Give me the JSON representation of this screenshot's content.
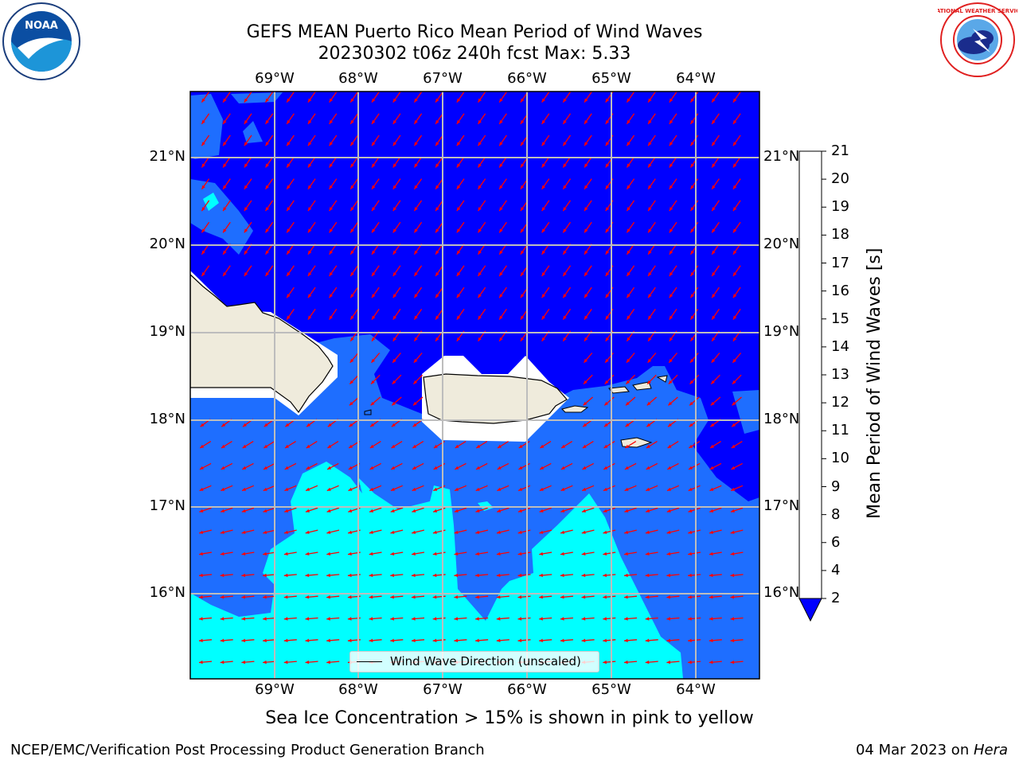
{
  "header": {
    "title_line1": "GEFS MEAN Puerto Rico Mean Period of Wind Waves",
    "title_line2": "20230302 t06z 240h fcst   Max: 5.33"
  },
  "logos": {
    "noaa": "NOAA",
    "nws": "NATIONAL WEATHER SERVICE"
  },
  "map": {
    "lon_labels": [
      "69°W",
      "68°W",
      "67°W",
      "66°W",
      "65°W",
      "64°W"
    ],
    "lat_labels": [
      "21°N",
      "20°N",
      "19°N",
      "18°N",
      "17°N",
      "16°N"
    ],
    "legend_label": "Wind Wave Direction (unscaled)",
    "colors": {
      "level_0_2": "#0000ff",
      "level_2_4": "#1e6eff",
      "level_4_6": "#00ffff",
      "land": "#efebdc",
      "arrow": "#ff0000",
      "grid": "#bdbdbd"
    }
  },
  "colorbar": {
    "label": "Mean Period of Wind Waves [s]",
    "ticks": [
      "2",
      "4",
      "6",
      "8",
      "9",
      "10",
      "11",
      "12",
      "13",
      "14",
      "15",
      "16",
      "17",
      "18",
      "19",
      "20",
      "21"
    ],
    "colors": [
      "#1e6eff",
      "#00ffff",
      "#44ffff",
      "#a0ffff",
      "#50f080",
      "#00e000",
      "#30d030",
      "#a0e000",
      "#d0ff00",
      "#e8f000",
      "#ffff00",
      "#ffd000",
      "#ffb000",
      "#ff8800",
      "#ff6000",
      "#ff3000",
      "#ff0000"
    ],
    "extend_color": "#0000ff"
  },
  "caption": "Sea Ice Concentration > 15% is shown in pink to yellow",
  "footer": {
    "left": "NCEP/EMC/Verification Post Processing Product Generation Branch",
    "date": "04 Mar 2023 on ",
    "machine": "Hera"
  }
}
